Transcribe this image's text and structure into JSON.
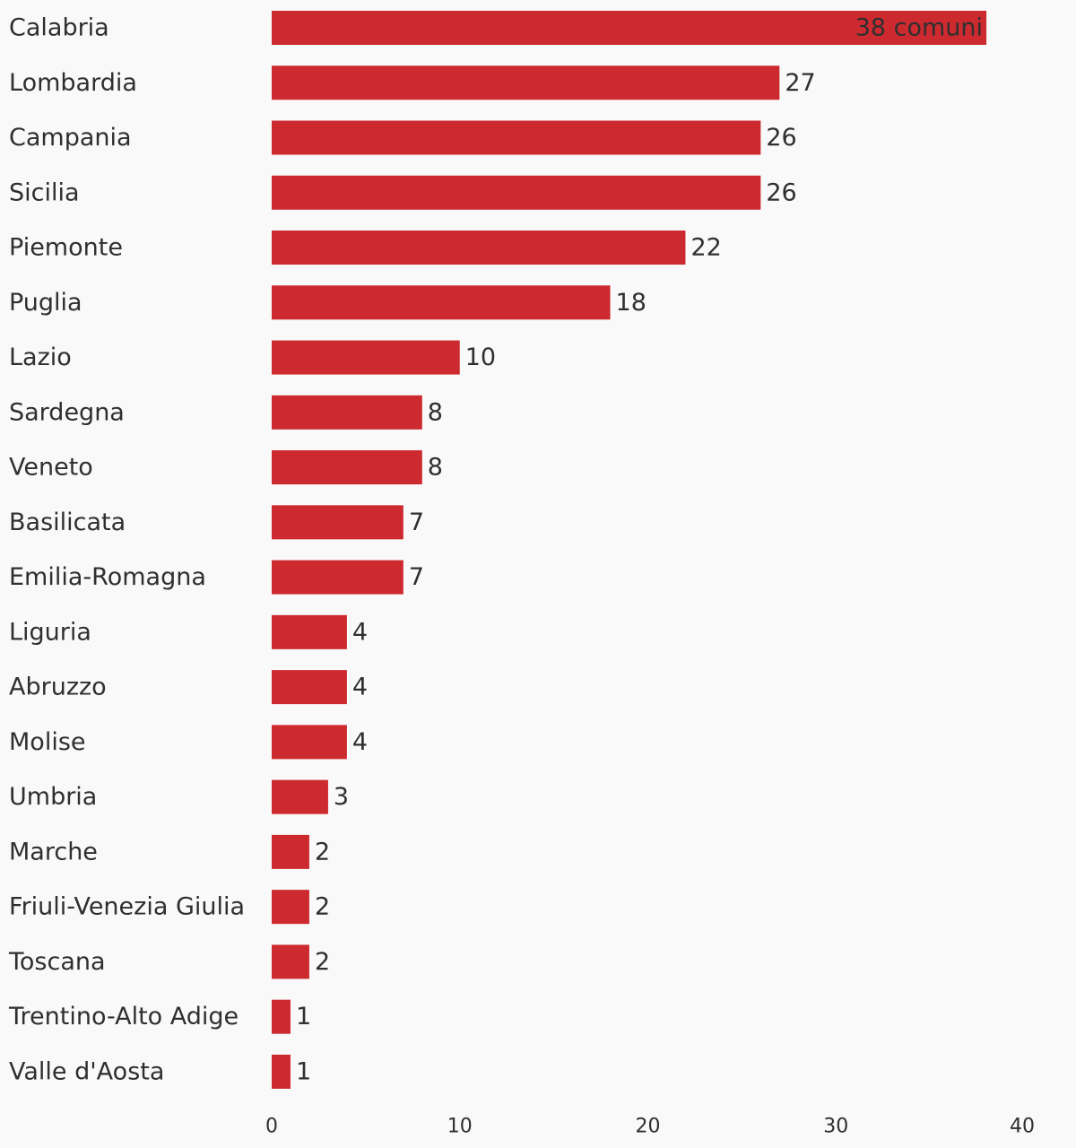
{
  "chart_data": {
    "type": "bar",
    "orientation": "horizontal",
    "categories": [
      "Calabria",
      "Lombardia",
      "Campania",
      "Sicilia",
      "Piemonte",
      "Puglia",
      "Lazio",
      "Sardegna",
      "Veneto",
      "Basilicata",
      "Emilia-Romagna",
      "Liguria",
      "Abruzzo",
      "Molise",
      "Umbria",
      "Marche",
      "Friuli-Venezia Giulia",
      "Toscana",
      "Trentino-Alto Adige",
      "Valle d'Aosta"
    ],
    "values": [
      38,
      27,
      26,
      26,
      22,
      18,
      10,
      8,
      8,
      7,
      7,
      4,
      4,
      4,
      3,
      2,
      2,
      2,
      1,
      1
    ],
    "value_labels": [
      "38 comuni",
      "27",
      "26",
      "26",
      "22",
      "18",
      "10",
      "8",
      "8",
      "7",
      "7",
      "4",
      "4",
      "4",
      "3",
      "2",
      "2",
      "2",
      "1",
      "1"
    ],
    "xlim": [
      0,
      40
    ],
    "x_ticks": [
      0,
      10,
      20,
      30,
      40
    ],
    "title": "",
    "xlabel": "",
    "ylabel": "",
    "grid": false,
    "bar_color": "#cd2a30",
    "text_color": "#2f2f2f",
    "background_color": "#f9f9f9"
  }
}
